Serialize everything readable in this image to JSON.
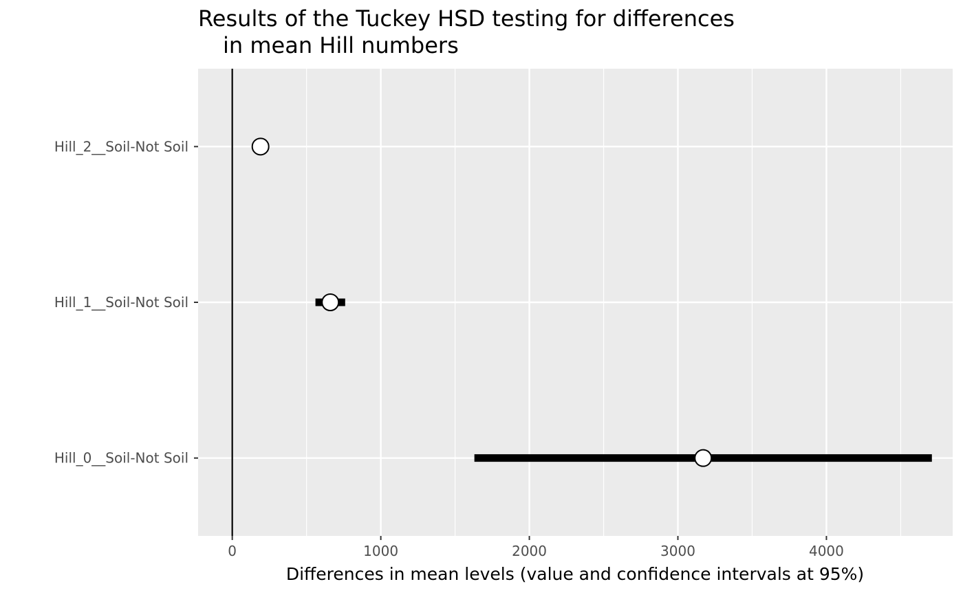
{
  "chart_data": {
    "type": "scatter",
    "title_line1": "Results of the Tuckey HSD testing for differences",
    "title_line2": "in mean Hill numbers",
    "xlabel": "Differences in mean levels (value and confidence intervals at 95%)",
    "ylabel": "",
    "xlim": [
      -230,
      4850
    ],
    "x_ticks": [
      0,
      1000,
      2000,
      3000,
      4000
    ],
    "x_tick_labels": [
      "0",
      "1000",
      "2000",
      "3000",
      "4000"
    ],
    "reference_line_x": 0,
    "grid": true,
    "background": "#ebebeb",
    "grid_color": "#ffffff",
    "point_fill": "#ffffff",
    "point_stroke": "#000000",
    "interval_color": "#000000",
    "categories": [
      "Hill_2__Soil-Not Soil",
      "Hill_1__Soil-Not Soil",
      "Hill_0__Soil-Not Soil"
    ],
    "points": [
      {
        "category": "Hill_2__Soil-Not Soil",
        "diff": 190,
        "lwr": 180,
        "upr": 200
      },
      {
        "category": "Hill_1__Soil-Not Soil",
        "diff": 660,
        "lwr": 560,
        "upr": 760
      },
      {
        "category": "Hill_0__Soil-Not Soil",
        "diff": 3170,
        "lwr": 1630,
        "upr": 4710
      }
    ]
  }
}
